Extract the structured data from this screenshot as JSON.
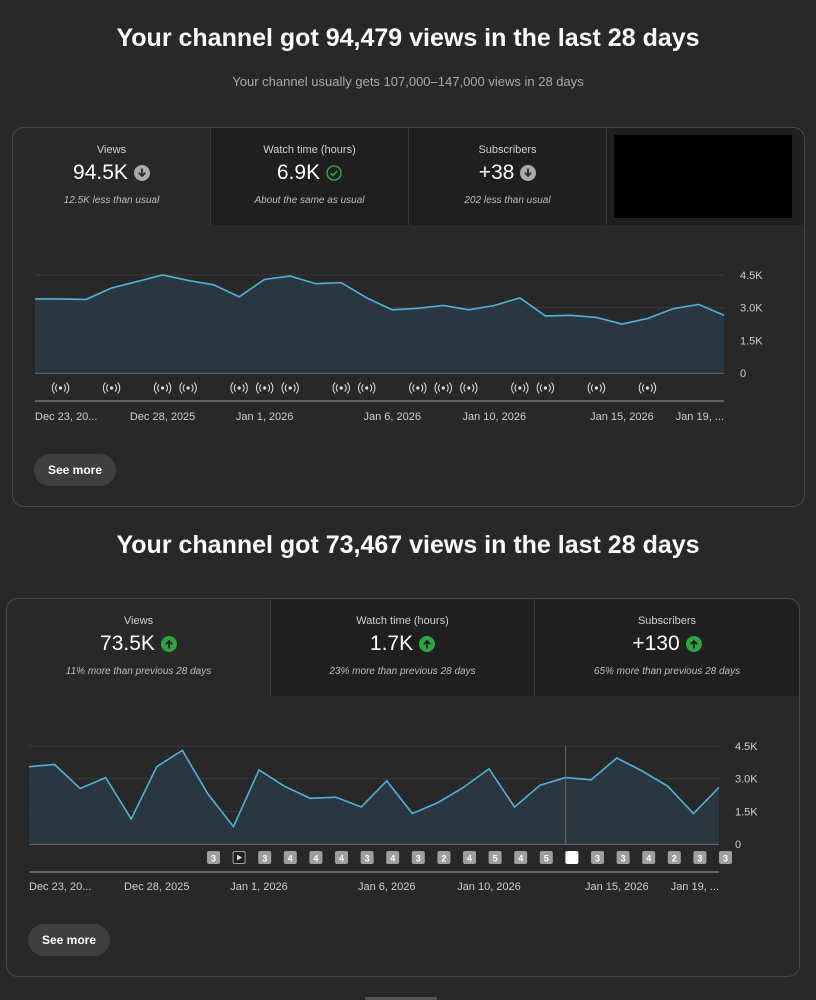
{
  "section1": {
    "headline": "Your channel got 94,479 views in the last 28 days",
    "subline": "Your channel usually gets 107,000–147,000 views in 28 days",
    "tabs": [
      {
        "label": "Views",
        "value": "94.5K",
        "note": "12.5K less than usual",
        "status": "down"
      },
      {
        "label": "Watch time (hours)",
        "value": "6.9K",
        "note": "About the same as usual",
        "status": "same"
      },
      {
        "label": "Subscribers",
        "value": "+38",
        "note": "202 less than usual",
        "status": "down"
      }
    ],
    "chart": {
      "y_ticks": [
        "4.5K",
        "3.0K",
        "1.5K",
        "0"
      ],
      "ylim": [
        0,
        4500
      ],
      "values": [
        3400,
        3400,
        3380,
        3900,
        4200,
        4500,
        4250,
        4050,
        3500,
        4300,
        4450,
        4100,
        4150,
        3450,
        2900,
        2970,
        3100,
        2900,
        3100,
        3450,
        2620,
        2650,
        2550,
        2250,
        2500,
        2950,
        3150,
        2650
      ],
      "x_labels": [
        "Dec 23, 20...",
        "Dec 28, 2025",
        "Jan 1, 2026",
        "Jan 6, 2026",
        "Jan 10, 2026",
        "Jan 15, 2026",
        "Jan 19, ..."
      ],
      "marker_days": [
        1,
        3,
        5,
        6,
        8,
        9,
        10,
        12,
        13,
        15,
        16,
        17,
        19,
        20,
        22,
        24
      ]
    },
    "see_more": "See more"
  },
  "section2": {
    "headline": "Your channel got 73,467 views in the last 28 days",
    "tabs": [
      {
        "label": "Views",
        "value": "73.5K",
        "note": "11% more than previous 28 days",
        "status": "up"
      },
      {
        "label": "Watch time (hours)",
        "value": "1.7K",
        "note": "23% more than previous 28 days",
        "status": "up"
      },
      {
        "label": "Subscribers",
        "value": "+130",
        "note": "65% more than previous 28 days",
        "status": "up"
      }
    ],
    "chart": {
      "y_ticks": [
        "4.5K",
        "3.0K",
        "1.5K",
        "0"
      ],
      "ylim": [
        0,
        4500
      ],
      "values": [
        3550,
        3650,
        2550,
        3050,
        1150,
        3550,
        4300,
        2300,
        800,
        3400,
        2650,
        2100,
        2150,
        1700,
        2900,
        1400,
        1900,
        2600,
        3450,
        1700,
        2700,
        3050,
        2950,
        3950,
        3350,
        2650,
        1400,
        2600
      ],
      "x_labels": [
        "Dec 23, 20...",
        "Dec 28, 2025",
        "Jan 1, 2026",
        "Jan 6, 2026",
        "Jan 10, 2026",
        "Jan 15, 2026",
        "Jan 19, ..."
      ],
      "badges": [
        "3",
        "▶",
        "3",
        "4",
        "4",
        "4",
        "3",
        "4",
        "3",
        "2",
        "4",
        "5",
        "4",
        "5",
        "",
        "3",
        "3",
        "4",
        "2",
        "3",
        "3"
      ],
      "hover_day": 21
    },
    "see_more": "See more"
  },
  "colors": {
    "line": "#4fb3d9",
    "fill": "#2a3a44",
    "good": "#2ba640",
    "neutral": "#aaaaaa"
  },
  "icons": {
    "down": "arrow-down-circle-icon",
    "same": "check-circle-icon",
    "up": "arrow-up-circle-icon"
  }
}
